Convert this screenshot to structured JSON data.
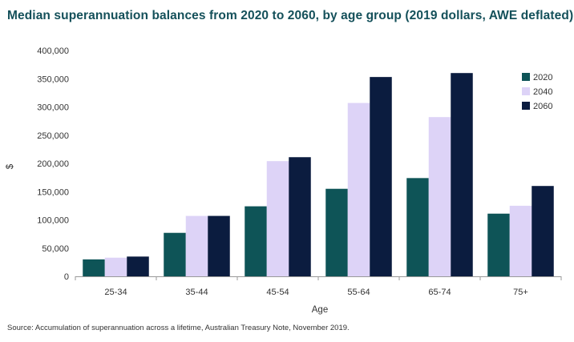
{
  "title": "Median superannuation balances from 2020 to 2060, by age group (2019 dollars, AWE deflated)",
  "source": "Source: Accumulation of superannuation across a lifetime, Australian Treasury Note, November 2019.",
  "colors": {
    "2020": "#0e5457",
    "2040": "#ddd3f7",
    "2060": "#0b1c3f",
    "axis": "#999999"
  },
  "chart_data": {
    "type": "bar",
    "title": "Median superannuation balances from 2020 to 2060, by age group (2019 dollars, AWE deflated)",
    "xlabel": "Age",
    "ylabel": "$",
    "ylim": [
      0,
      400000
    ],
    "yticks": [
      0,
      50000,
      100000,
      150000,
      200000,
      250000,
      300000,
      350000,
      400000
    ],
    "ytick_labels": [
      "0",
      "50,000",
      "100,000",
      "150,000",
      "200,000",
      "250,000",
      "300,000",
      "350,000",
      "400,000"
    ],
    "grid": false,
    "legend_position": "right",
    "categories": [
      "25-34",
      "35-44",
      "45-54",
      "55-64",
      "65-74",
      "75+"
    ],
    "series": [
      {
        "name": "2020",
        "values": [
          30000,
          77000,
          124000,
          155000,
          174000,
          111000
        ]
      },
      {
        "name": "2040",
        "values": [
          33000,
          107000,
          204000,
          307000,
          282000,
          125000
        ]
      },
      {
        "name": "2060",
        "values": [
          35000,
          107000,
          211000,
          353000,
          360000,
          160000
        ]
      }
    ]
  }
}
